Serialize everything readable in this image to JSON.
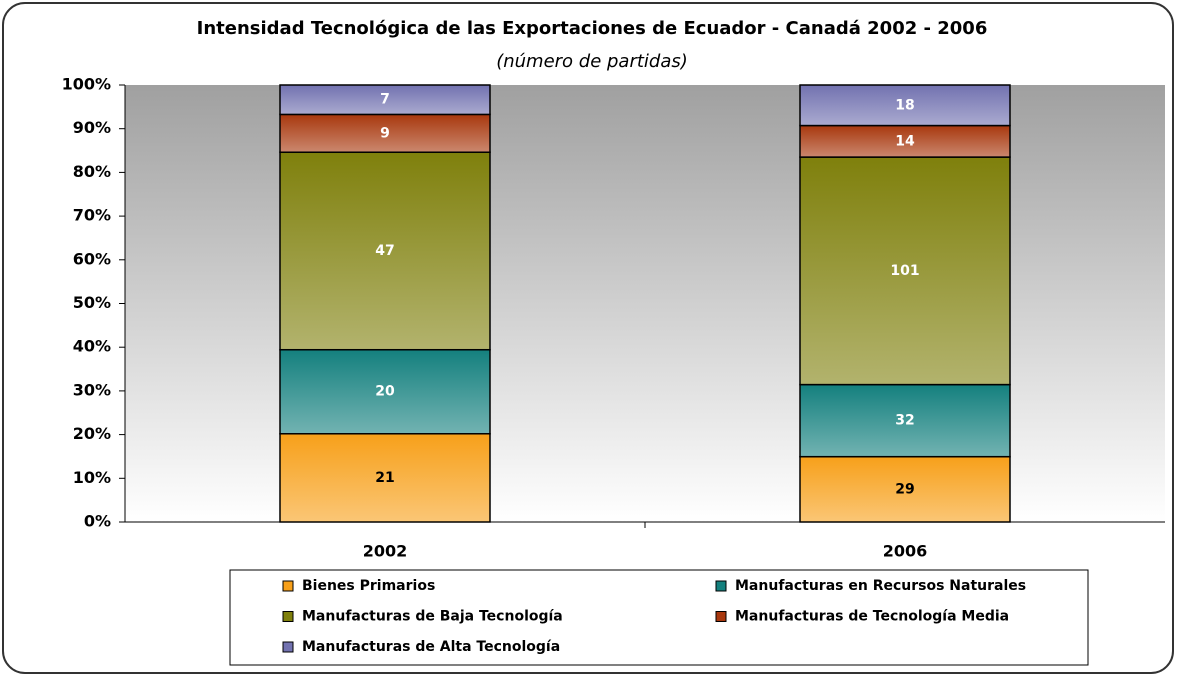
{
  "chart_data": {
    "type": "bar",
    "stacking": "percent",
    "title": "Intensidad Tecnológica de las Exportaciones de Ecuador - Canadá 2002 - 2006",
    "subtitle": "(número de partidas)",
    "categories": [
      "2002",
      "2006"
    ],
    "series": [
      {
        "name": "Bienes Primarios",
        "color": "#f7a01a",
        "label_color": "#000000",
        "values": [
          21,
          29
        ]
      },
      {
        "name": "Manufacturas en Recursos Naturales",
        "color": "#14807e",
        "label_color": "#ffffff",
        "values": [
          20,
          32
        ]
      },
      {
        "name": "Manufacturas de Baja Tecnología",
        "color": "#7f800c",
        "label_color": "#ffffff",
        "values": [
          47,
          101
        ]
      },
      {
        "name": "Manufacturas de Tecnología Media",
        "color": "#a8380e",
        "label_color": "#ffffff",
        "values": [
          9,
          14
        ]
      },
      {
        "name": "Manufacturas de Alta Tecnología",
        "color": "#7272b0",
        "label_color": "#ffffff",
        "values": [
          7,
          18
        ]
      }
    ],
    "ylim": [
      0,
      100
    ],
    "yticks": [
      {
        "value": 0,
        "label": "0%"
      },
      {
        "value": 10,
        "label": "10%"
      },
      {
        "value": 20,
        "label": "20%"
      },
      {
        "value": 30,
        "label": "30%"
      },
      {
        "value": 40,
        "label": "40%"
      },
      {
        "value": 50,
        "label": "50%"
      },
      {
        "value": 60,
        "label": "60%"
      },
      {
        "value": 70,
        "label": "70%"
      },
      {
        "value": 80,
        "label": "80%"
      },
      {
        "value": 90,
        "label": "90%"
      },
      {
        "value": 100,
        "label": "100%"
      }
    ],
    "legend": "bottom"
  }
}
